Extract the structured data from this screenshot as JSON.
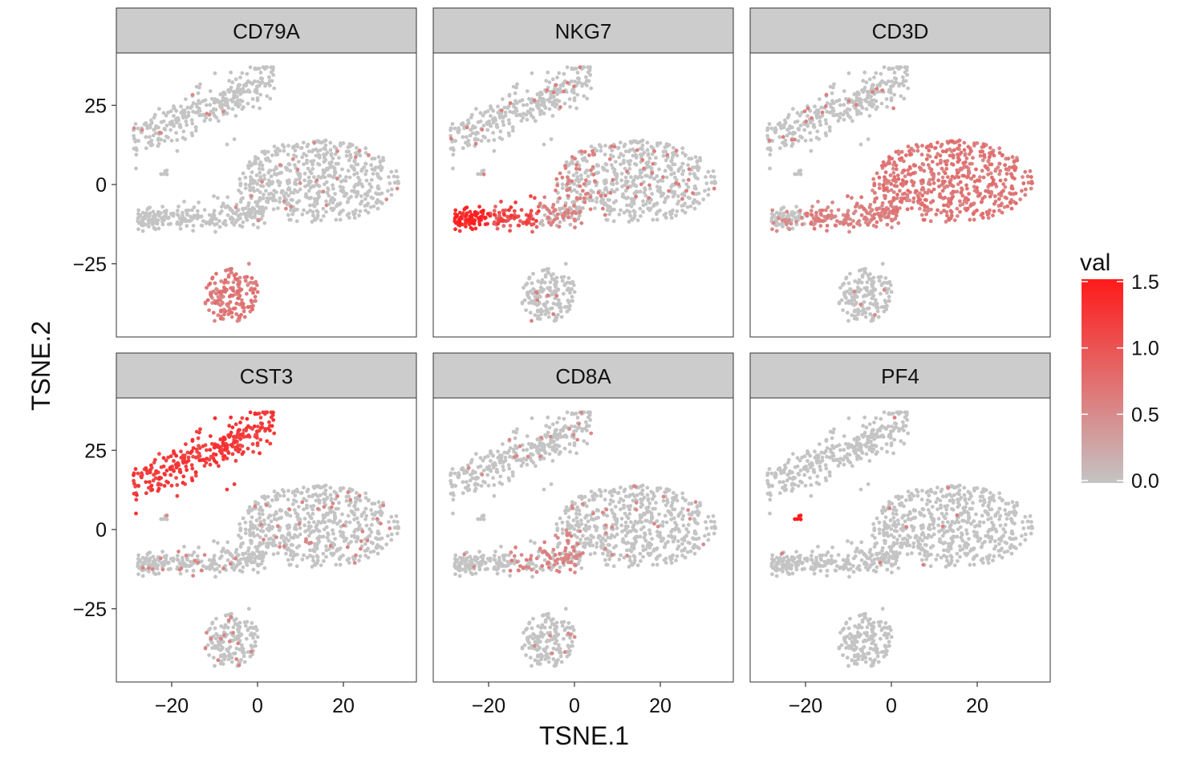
{
  "chart_data": {
    "type": "scatter",
    "facet_layout": "3 columns x 2 rows",
    "xlabel": "TSNE.1",
    "ylabel": "TSNE.2",
    "xlim": [
      -34,
      37
    ],
    "ylim": [
      -45,
      40
    ],
    "x_ticks": [
      -20,
      0,
      20
    ],
    "y_ticks": [
      25,
      0,
      -25
    ],
    "x_tick_labels": [
      "−20",
      "0",
      "20"
    ],
    "y_tick_labels": [
      "25",
      "0",
      "−25"
    ],
    "legend": {
      "title": "val",
      "position": "right",
      "min": 0,
      "max": 1.5,
      "ticks": [
        0.0,
        0.5,
        1.0,
        1.5
      ],
      "tick_labels": [
        "0.0",
        "0.5",
        "1.0",
        "1.5"
      ],
      "low_color": "#c4c4c4",
      "high_color": "#ff1a1a"
    },
    "grid": false,
    "point_clusters": [
      {
        "id": "upper-left-cluster",
        "x_range": [
          -30,
          4
        ],
        "y_range": [
          9,
          37
        ],
        "trend": "diagonal band rising to the right"
      },
      {
        "id": "large-center-cluster",
        "x_range": [
          -28,
          34
        ],
        "y_range": [
          -15,
          16
        ],
        "trend": "tail on the left near y -11"
      },
      {
        "id": "bottom-cluster",
        "x_range": [
          -13,
          2
        ],
        "y_range": [
          -44,
          -24
        ]
      }
    ],
    "facets": [
      {
        "gene": "CD79A",
        "expressed_region": "bottom-cluster",
        "expression_level": 0.65
      },
      {
        "gene": "NKG7",
        "expressed_region": "left tail of large-center-cluster (x -30 to -10, y about -11)",
        "expression_level": 1.4
      },
      {
        "gene": "CD3D",
        "expressed_region": "large-center-cluster",
        "expression_level": 0.65
      },
      {
        "gene": "CST3",
        "expressed_region": "upper-left-cluster",
        "expression_level": 1.2
      },
      {
        "gene": "CD8A",
        "expressed_region": "scattered in large-center-cluster (x -15 to 0, y about -8)",
        "expression_level": 0.5
      },
      {
        "gene": "PF4",
        "expressed_region": "small group near x -22, y 3",
        "expression_level": 1.5
      }
    ]
  }
}
